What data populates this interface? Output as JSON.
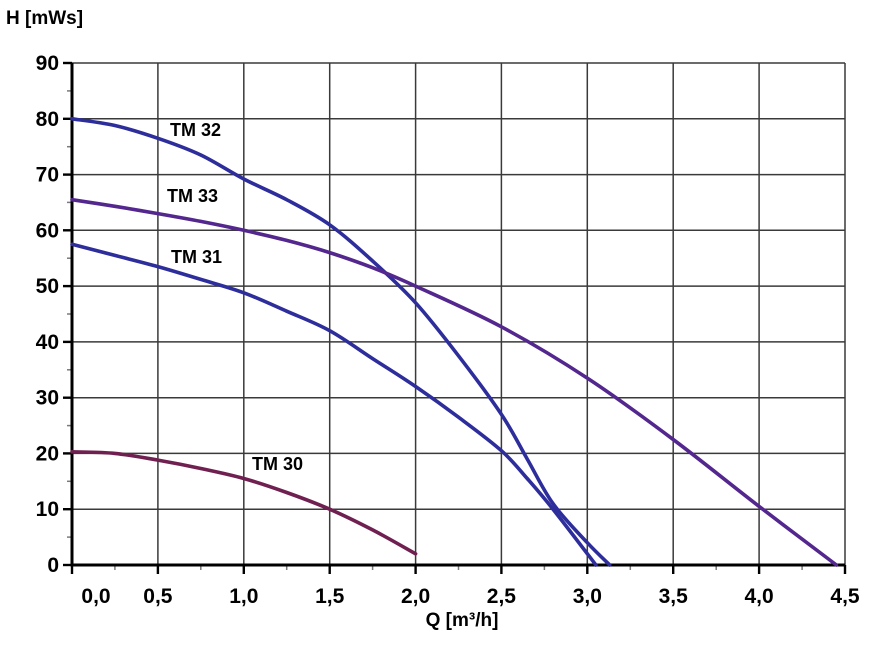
{
  "page": {
    "background": "#ffffff"
  },
  "chart_data": {
    "type": "line",
    "title": "",
    "xlabel": "Q [m³/h]",
    "ylabel": "H [mWs]",
    "xlim": [
      0,
      4.5
    ],
    "ylim": [
      0,
      90
    ],
    "x_major_step": 0.5,
    "x_minor_step": 0.25,
    "y_major_step": 10,
    "y_minor_step": 5,
    "grid": true,
    "legend_position": "inline-curve-labels",
    "x_tick_labels": [
      "0,0",
      "0,5",
      "1,0",
      "1,5",
      "2,0",
      "2,5",
      "3,0",
      "3,5",
      "4,0",
      "4,5"
    ],
    "y_tick_labels": [
      "0",
      "10",
      "20",
      "30",
      "40",
      "50",
      "60",
      "70",
      "80",
      "90"
    ],
    "colors": {
      "axis": "#000000",
      "grid": "#3a3a3a",
      "minor_tick": "#7a7a7a",
      "curve_blue": "#2d2d9b",
      "curve_purple": "#53278e",
      "curve_maroon": "#6f2050"
    },
    "series": [
      {
        "name": "TM 32",
        "color": "#2d2d9b",
        "points": [
          [
            0,
            80
          ],
          [
            0.25,
            78.8
          ],
          [
            0.5,
            76.5
          ],
          [
            0.75,
            73.5
          ],
          [
            1.0,
            69.2
          ],
          [
            1.25,
            65.5
          ],
          [
            1.5,
            61
          ],
          [
            1.75,
            54.5
          ],
          [
            2.0,
            47
          ],
          [
            2.25,
            37.5
          ],
          [
            2.5,
            27
          ],
          [
            2.65,
            19
          ],
          [
            2.8,
            11
          ],
          [
            3.0,
            4
          ],
          [
            3.13,
            0
          ]
        ]
      },
      {
        "name": "TM 33",
        "color": "#53278e",
        "points": [
          [
            0,
            65.5
          ],
          [
            0.25,
            64.3
          ],
          [
            0.5,
            63
          ],
          [
            0.75,
            61.6
          ],
          [
            1.0,
            60
          ],
          [
            1.25,
            58.2
          ],
          [
            1.5,
            56
          ],
          [
            1.75,
            53.3
          ],
          [
            2.0,
            50
          ],
          [
            2.5,
            42.7
          ],
          [
            3.0,
            33.5
          ],
          [
            3.5,
            22.5
          ],
          [
            4.0,
            10.5
          ],
          [
            4.45,
            0
          ]
        ]
      },
      {
        "name": "TM 31",
        "color": "#2d2d9b",
        "points": [
          [
            0,
            57.5
          ],
          [
            0.25,
            55.5
          ],
          [
            0.5,
            53.5
          ],
          [
            0.75,
            51.2
          ],
          [
            1.0,
            48.8
          ],
          [
            1.25,
            45.5
          ],
          [
            1.5,
            42
          ],
          [
            1.75,
            37
          ],
          [
            2.0,
            32
          ],
          [
            2.25,
            26.5
          ],
          [
            2.5,
            20.5
          ],
          [
            2.65,
            15.5
          ],
          [
            2.8,
            10
          ],
          [
            3.05,
            0
          ]
        ]
      },
      {
        "name": "TM 30",
        "color": "#6f2050",
        "points": [
          [
            0,
            20.3
          ],
          [
            0.25,
            20
          ],
          [
            0.5,
            18.8
          ],
          [
            0.75,
            17.3
          ],
          [
            1.0,
            15.5
          ],
          [
            1.25,
            13
          ],
          [
            1.5,
            10
          ],
          [
            1.75,
            6.3
          ],
          [
            2.0,
            2
          ]
        ]
      }
    ]
  }
}
